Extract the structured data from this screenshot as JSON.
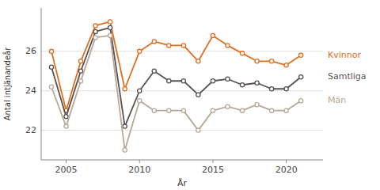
{
  "chart_data": {
    "type": "line",
    "x": [
      2004,
      2005,
      2006,
      2007,
      2008,
      2009,
      2010,
      2011,
      2012,
      2013,
      2014,
      2015,
      2016,
      2017,
      2018,
      2019,
      2020,
      2021
    ],
    "series": [
      {
        "name": "Kvinnor",
        "color": "#E07020",
        "values": [
          26.0,
          23.0,
          25.5,
          27.3,
          27.5,
          24.1,
          26.0,
          26.5,
          26.3,
          26.3,
          25.5,
          26.8,
          26.3,
          25.9,
          25.5,
          25.5,
          25.3,
          25.8
        ]
      },
      {
        "name": "Samtliga",
        "color": "#5a5050",
        "values": [
          25.2,
          22.7,
          25.0,
          27.0,
          27.2,
          22.2,
          24.0,
          25.0,
          24.5,
          24.5,
          23.8,
          24.5,
          24.6,
          24.3,
          24.4,
          24.1,
          24.1,
          24.7
        ]
      },
      {
        "name": "Män",
        "color": "#b8a898",
        "values": [
          24.2,
          22.2,
          24.5,
          26.7,
          26.8,
          21.0,
          23.5,
          23.0,
          23.0,
          23.0,
          22.0,
          23.0,
          23.2,
          23.0,
          23.3,
          23.0,
          23.0,
          23.5
        ]
      }
    ],
    "xlabel": "År",
    "ylabel": "Antal intjänandeår",
    "xlim": [
      2003.3,
      2022.5
    ],
    "ylim": [
      20.5,
      28.2
    ],
    "xticks": [
      2005,
      2010,
      2015,
      2020
    ],
    "yticks": [
      22,
      24,
      26
    ],
    "grid": true,
    "legend": "right",
    "marker": "circle"
  }
}
